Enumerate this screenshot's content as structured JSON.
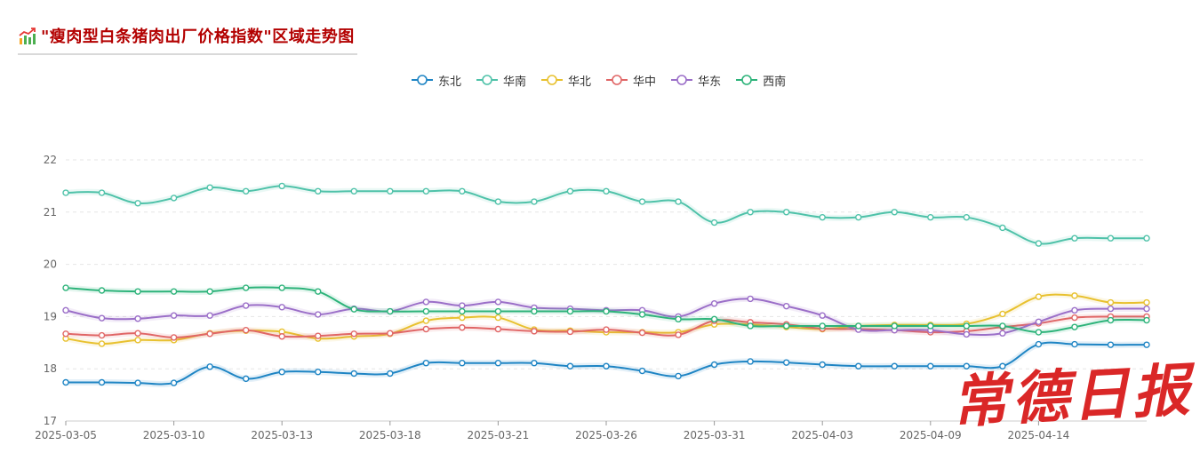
{
  "header": {
    "title": "\"瘦肉型白条猪肉出厂价格指数\"区域走势图",
    "icon": "chart-trend-icon"
  },
  "watermark": {
    "text": "常德日报"
  },
  "chart_data": {
    "type": "line",
    "title": "\"瘦肉型白条猪肉出厂价格指数\"区域走势图",
    "xlabel": "",
    "ylabel": "",
    "ylim": [
      17,
      22
    ],
    "yticks": [
      17,
      18,
      19,
      20,
      21,
      22
    ],
    "grid": true,
    "legend_position": "top-center",
    "x_tick_labels": [
      "2025-03-05",
      "2025-03-10",
      "2025-03-13",
      "2025-03-18",
      "2025-03-21",
      "2025-03-26",
      "2025-03-31",
      "2025-04-03",
      "2025-04-09",
      "2025-04-14"
    ],
    "x_tick_index": [
      0,
      3,
      6,
      9,
      12,
      15,
      18,
      21,
      24,
      27
    ],
    "n_points": 31,
    "series": [
      {
        "name": "东北",
        "color": "#1f85c4",
        "values": [
          17.74,
          17.74,
          17.73,
          17.73,
          18.04,
          17.81,
          17.94,
          17.94,
          17.91,
          17.91,
          18.11,
          18.11,
          18.11,
          18.11,
          18.05,
          18.05,
          17.96,
          17.86,
          18.08,
          18.14,
          18.12,
          18.08,
          18.05,
          18.05,
          18.05,
          18.05,
          18.05,
          18.47,
          18.47,
          18.46,
          18.46
        ]
      },
      {
        "name": "华南",
        "color": "#4fc2a9",
        "values": [
          21.37,
          21.37,
          21.17,
          21.27,
          21.47,
          21.4,
          21.5,
          21.4,
          21.4,
          21.4,
          21.4,
          21.4,
          21.2,
          21.2,
          21.4,
          21.4,
          21.2,
          21.2,
          20.8,
          21.0,
          21.0,
          20.9,
          20.9,
          21.0,
          20.9,
          20.9,
          20.7,
          20.4,
          20.5,
          20.5,
          20.5
        ]
      },
      {
        "name": "华北",
        "color": "#e8c12f",
        "values": [
          18.58,
          18.48,
          18.55,
          18.55,
          18.68,
          18.73,
          18.71,
          18.58,
          18.62,
          18.67,
          18.92,
          18.98,
          18.98,
          18.75,
          18.73,
          18.7,
          18.7,
          18.7,
          18.85,
          18.85,
          18.8,
          18.76,
          18.82,
          18.84,
          18.84,
          18.86,
          19.05,
          19.38,
          19.4,
          19.27,
          19.27
        ]
      },
      {
        "name": "华中",
        "color": "#e06666",
        "values": [
          18.67,
          18.64,
          18.68,
          18.6,
          18.67,
          18.74,
          18.62,
          18.63,
          18.67,
          18.68,
          18.76,
          18.79,
          18.76,
          18.72,
          18.71,
          18.75,
          18.69,
          18.65,
          18.92,
          18.89,
          18.85,
          18.77,
          18.76,
          18.74,
          18.7,
          18.72,
          18.8,
          18.87,
          18.98,
          19.0,
          19.0
        ]
      },
      {
        "name": "华东",
        "color": "#9b6fc8",
        "values": [
          19.12,
          18.97,
          18.96,
          19.02,
          19.02,
          19.21,
          19.18,
          19.04,
          19.15,
          19.1,
          19.28,
          19.21,
          19.28,
          19.17,
          19.15,
          19.12,
          19.12,
          19.0,
          19.25,
          19.34,
          19.2,
          19.02,
          18.75,
          18.74,
          18.74,
          18.66,
          18.68,
          18.9,
          19.12,
          19.15,
          19.15
        ]
      },
      {
        "name": "西南",
        "color": "#2db37a",
        "values": [
          19.55,
          19.5,
          19.48,
          19.48,
          19.48,
          19.55,
          19.55,
          19.48,
          19.14,
          19.1,
          19.1,
          19.1,
          19.1,
          19.1,
          19.1,
          19.1,
          19.04,
          18.95,
          18.95,
          18.82,
          18.82,
          18.82,
          18.82,
          18.82,
          18.82,
          18.82,
          18.82,
          18.7,
          18.8,
          18.93,
          18.93
        ]
      }
    ]
  }
}
